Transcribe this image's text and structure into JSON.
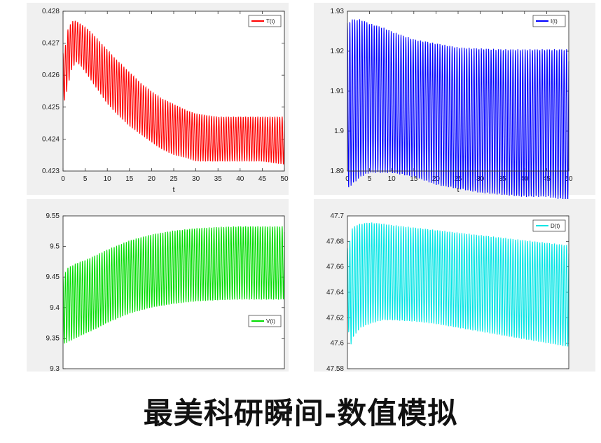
{
  "chart_data": [
    {
      "type": "line",
      "xlabel": "t",
      "xlim": [
        0,
        50
      ],
      "xticks": [
        "0",
        "5",
        "10",
        "15",
        "20",
        "25",
        "30",
        "35",
        "40",
        "45",
        "50"
      ],
      "ylim": [
        0.423,
        0.428
      ],
      "yticks": [
        "0.423",
        "0.424",
        "0.425",
        "0.426",
        "0.427",
        "0.428"
      ],
      "legend": {
        "label": "T(t)",
        "position": "top-right"
      },
      "series": [
        {
          "name": "T(t)",
          "color": "#ff0000",
          "oscillation_period": 0.55,
          "x": [
            0,
            0.4,
            1,
            2,
            3,
            4,
            5,
            6,
            8,
            10,
            12,
            15,
            18,
            20,
            22,
            25,
            28,
            30,
            35,
            40,
            45,
            50
          ],
          "upper": [
            0.4267,
            0.4268,
            0.4274,
            0.4277,
            0.4277,
            0.4276,
            0.4275,
            0.4274,
            0.4271,
            0.4268,
            0.4265,
            0.4261,
            0.4257,
            0.4255,
            0.4253,
            0.4251,
            0.4249,
            0.4248,
            0.4247,
            0.4247,
            0.4247,
            0.4247
          ],
          "lower": [
            0.4252,
            0.4252,
            0.4256,
            0.4262,
            0.4264,
            0.4263,
            0.4261,
            0.4259,
            0.4255,
            0.4251,
            0.4248,
            0.4244,
            0.4241,
            0.4239,
            0.4237,
            0.4235,
            0.4234,
            0.4233,
            0.4233,
            0.4233,
            0.4233,
            0.4232
          ]
        }
      ]
    },
    {
      "type": "line",
      "xlabel": "t",
      "xlim": [
        0,
        50
      ],
      "xticks": [
        "0",
        "5",
        "10",
        "15",
        "20",
        "25",
        "30",
        "35",
        "40",
        "45",
        "50"
      ],
      "ylim": [
        1.89,
        1.93
      ],
      "yticks": [
        "1.89",
        "1.9",
        "1.91",
        "1.92",
        "1.93"
      ],
      "legend": {
        "label": "I(t)",
        "position": "top-right"
      },
      "series": [
        {
          "name": "I(t)",
          "color": "#0000ff",
          "oscillation_period": 0.55,
          "x": [
            0,
            1,
            3,
            5,
            8,
            10,
            15,
            20,
            25,
            30,
            35,
            40,
            45,
            50
          ],
          "upper": [
            1.927,
            1.928,
            1.928,
            1.927,
            1.926,
            1.925,
            1.923,
            1.922,
            1.921,
            1.9207,
            1.9205,
            1.9205,
            1.9205,
            1.9205
          ],
          "lower": [
            1.8855,
            1.8865,
            1.8885,
            1.8895,
            1.8895,
            1.8895,
            1.8885,
            1.8865,
            1.8855,
            1.8845,
            1.884,
            1.8835,
            1.8835,
            1.8825
          ]
        }
      ]
    },
    {
      "type": "line",
      "xlabel": "",
      "xlim": [
        0,
        50
      ],
      "xticks": [],
      "ylim": [
        9.3,
        9.55
      ],
      "yticks": [
        "9.3",
        "9.35",
        "9.4",
        "9.45",
        "9.5",
        "9.55"
      ],
      "legend": {
        "label": "V(t)",
        "position": "bottom-right"
      },
      "series": [
        {
          "name": "V(t)",
          "color": "#00dd00",
          "oscillation_period": 0.55,
          "x": [
            0,
            1,
            3,
            5,
            8,
            10,
            15,
            20,
            25,
            30,
            35,
            40,
            45,
            50
          ],
          "upper": [
            9.45,
            9.465,
            9.473,
            9.478,
            9.488,
            9.495,
            9.51,
            9.52,
            9.526,
            9.53,
            9.532,
            9.533,
            9.533,
            9.533
          ],
          "lower": [
            9.34,
            9.343,
            9.35,
            9.357,
            9.367,
            9.375,
            9.39,
            9.4,
            9.406,
            9.41,
            9.412,
            9.413,
            9.413,
            9.413
          ]
        }
      ]
    },
    {
      "type": "line",
      "xlabel": "",
      "xlim": [
        0,
        50
      ],
      "xticks": [],
      "ylim": [
        47.58,
        47.7
      ],
      "yticks": [
        "47.58",
        "47.6",
        "47.62",
        "47.64",
        "47.66",
        "47.68",
        "47.7"
      ],
      "legend": {
        "label": "D(t)",
        "position": "top-right"
      },
      "series": [
        {
          "name": "D(t)",
          "color": "#00e5e5",
          "oscillation_period": 0.55,
          "x": [
            0,
            0.5,
            1,
            2,
            3,
            5,
            8,
            10,
            15,
            20,
            25,
            30,
            35,
            40,
            45,
            50
          ],
          "upper": [
            47.675,
            47.68,
            47.69,
            47.693,
            47.694,
            47.695,
            47.694,
            47.693,
            47.691,
            47.689,
            47.687,
            47.685,
            47.683,
            47.681,
            47.679,
            47.677
          ],
          "lower": [
            47.63,
            47.592,
            47.603,
            47.608,
            47.612,
            47.615,
            47.618,
            47.618,
            47.617,
            47.615,
            47.612,
            47.609,
            47.606,
            47.603,
            47.6,
            47.597
          ]
        }
      ]
    }
  ],
  "caption": "最美科研瞬间-数值模拟"
}
